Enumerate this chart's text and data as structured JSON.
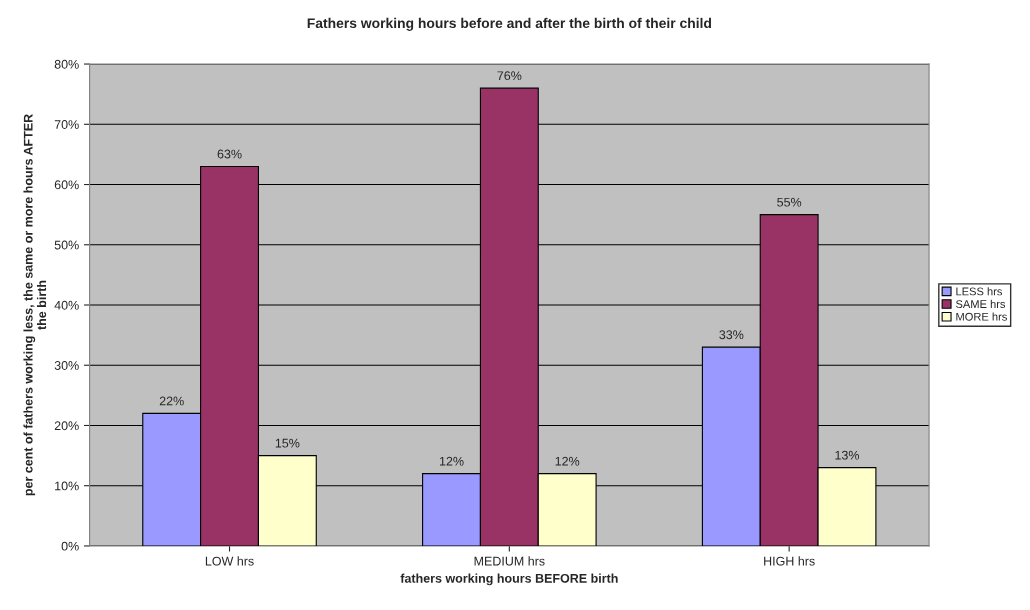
{
  "chart_data": {
    "type": "bar",
    "title": "Fathers working hours before and after the birth of their child",
    "xlabel": "fathers working hours BEFORE birth",
    "ylabel": "per cent of fathers working less, the same or more hours AFTER\nthe birth",
    "categories": [
      "LOW hrs",
      "MEDIUM hrs",
      "HIGH hrs"
    ],
    "series": [
      {
        "name": "LESS hrs",
        "color": "#9999ff",
        "values": [
          22,
          12,
          33
        ],
        "value_labels": [
          "22%",
          "12%",
          "33%"
        ]
      },
      {
        "name": "SAME hrs",
        "color": "#993366",
        "values": [
          63,
          76,
          55
        ],
        "value_labels": [
          "63%",
          "76%",
          "55%"
        ]
      },
      {
        "name": "MORE hrs",
        "color": "#ffffcc",
        "values": [
          15,
          12,
          13
        ],
        "value_labels": [
          "15%",
          "12%",
          "13%"
        ]
      }
    ],
    "ylim": [
      0,
      80
    ],
    "yticks": [
      {
        "value": 0,
        "label": "0%"
      },
      {
        "value": 10,
        "label": "10%"
      },
      {
        "value": 20,
        "label": "20%"
      },
      {
        "value": 30,
        "label": "30%"
      },
      {
        "value": 40,
        "label": "40%"
      },
      {
        "value": 50,
        "label": "50%"
      },
      {
        "value": 60,
        "label": "60%"
      },
      {
        "value": 70,
        "label": "70%"
      },
      {
        "value": 80,
        "label": "80%"
      }
    ],
    "grid": "y",
    "legend": "right"
  }
}
